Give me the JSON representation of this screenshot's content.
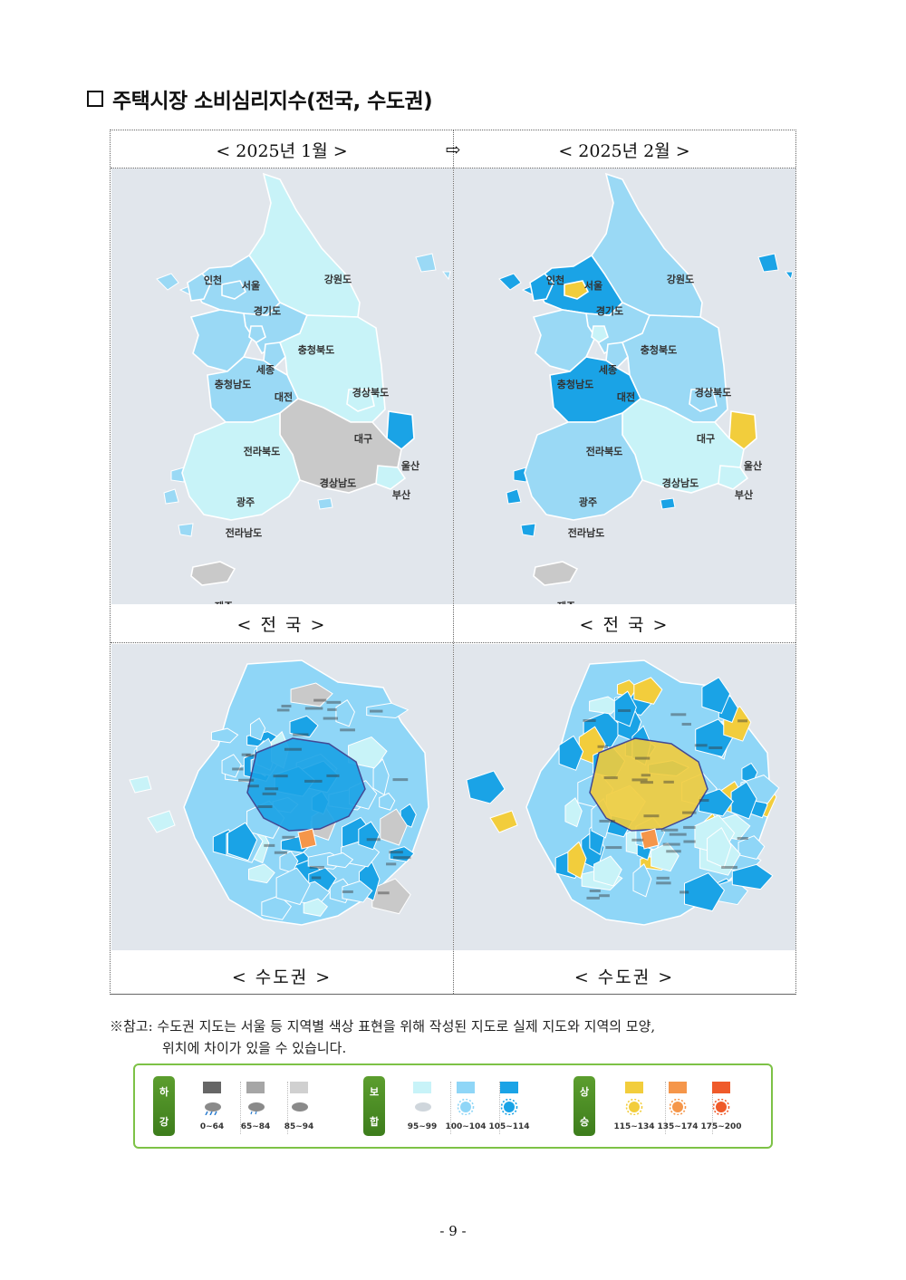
{
  "title": "주택시장 소비심리지수(전국, 수도권)",
  "header": {
    "left": "< 2025년 1월 >",
    "arrow": "⇨",
    "right": "< 2025년 2월 >"
  },
  "captions": {
    "national_left": "< 전   국 >",
    "national_right": "< 전   국 >",
    "capital_left": "< 수도권 >",
    "capital_right": "< 수도권 >"
  },
  "regions": {
    "incheon": "인천",
    "seoul": "서울",
    "gyeonggi": "경기도",
    "gangwon": "강원도",
    "chungbuk": "충청북도",
    "sejong": "세종",
    "chungnam": "충청남도",
    "daejeon": "대전",
    "gyeongbuk": "경상북도",
    "daegu": "대구",
    "jeonbuk": "전라북도",
    "ulsan": "울산",
    "gyeongnam": "경상남도",
    "busan": "부산",
    "gwangju": "광주",
    "jeonnam": "전라남도",
    "jeju": "제주"
  },
  "map_colors": {
    "jan": {
      "incheon": "#9ad9f5",
      "gyeonggi": "#9ad9f5",
      "gangwon": "#c8f3f8",
      "chungbuk": "#9ad9f5",
      "chungnam": "#9ad9f5",
      "sejong": "#9ad9f5",
      "daejeon": "#9ad9f5",
      "gyeongbuk": "#c8f3f8",
      "daegu": "#c8f3f8",
      "jeonbuk": "#9ad9f5",
      "ulsan": "#1aa3e6",
      "gyeongnam": "#c9c9c9",
      "busan": "#c8f3f8",
      "jeonnam": "#c8f3f8",
      "jeju": "#c9c9c9"
    },
    "feb": {
      "incheon": "#1aa3e6",
      "gyeonggi": "#1aa3e6",
      "seoul": "#f2cd3c",
      "gangwon": "#9ad9f5",
      "chungbuk": "#9ad9f5",
      "chungnam": "#9ad9f5",
      "sejong": "#c8f3f8",
      "daejeon": "#9ad9f5",
      "gyeongbuk": "#9ad9f5",
      "daegu": "#9ad9f5",
      "jeonbuk": "#1aa3e6",
      "ulsan": "#f2cd3c",
      "gyeongnam": "#c8f3f8",
      "busan": "#c8f3f8",
      "jeonnam": "#9ad9f5",
      "jeju": "#c9c9c9"
    }
  },
  "note": {
    "line1": "※참고: 수도권 지도는 서울 등 지역별 색상 표현을 위해 작성된 지도로 실제 지도와 지역의 모양,",
    "line2": "위치에 차이가 있을 수 있습니다."
  },
  "legend": {
    "groups": [
      {
        "label_top": "하",
        "label_bottom": "강"
      },
      {
        "label_top": "보",
        "label_bottom": "합"
      },
      {
        "label_top": "상",
        "label_bottom": "승"
      }
    ],
    "items": [
      {
        "range": "0~64",
        "color": "#666666",
        "icon": "storm-cloud-icon"
      },
      {
        "range": "65~84",
        "color": "#a6a6a6",
        "icon": "rain-cloud-icon"
      },
      {
        "range": "85~94",
        "color": "#d0d0d0",
        "icon": "cloud-icon"
      },
      {
        "range": "95~99",
        "color": "#c8f3f8",
        "icon": "cloud-sun-icon"
      },
      {
        "range": "100~104",
        "color": "#8fd6f7",
        "icon": "light-blue-sun-icon"
      },
      {
        "range": "105~114",
        "color": "#1aa3e6",
        "icon": "blue-sun-icon"
      },
      {
        "range": "115~134",
        "color": "#f2cd3c",
        "icon": "yellow-sun-icon"
      },
      {
        "range": "135~174",
        "color": "#f5964a",
        "icon": "orange-sun-icon"
      },
      {
        "range": "175~200",
        "color": "#ef5a2a",
        "icon": "red-sun-icon"
      }
    ]
  },
  "page_number": "- 9 -"
}
